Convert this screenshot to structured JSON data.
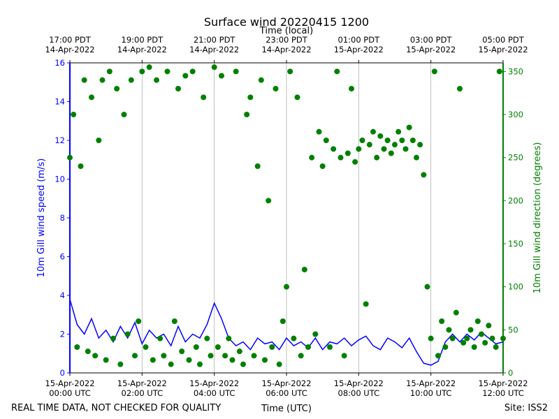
{
  "chart_data": {
    "type": "line_scatter_dual",
    "title": "Surface wind 20220415 1200",
    "x2label": "Time (local)",
    "xlabel": "Time (UTC)",
    "ylabel": "10m Gill wind speed (m/s)",
    "y2label": "10m Gill wind direction (degrees)",
    "footer_left": "REAL TIME DATA, NOT CHECKED FOR QUALITY",
    "footer_right": "Site: ISS2",
    "xlim": [
      0,
      12
    ],
    "xticks": [
      {
        "value": 0,
        "label": [
          "15-Apr-2022",
          "00:00 UTC"
        ]
      },
      {
        "value": 2,
        "label": [
          "15-Apr-2022",
          "02:00 UTC"
        ]
      },
      {
        "value": 4,
        "label": [
          "15-Apr-2022",
          "04:00 UTC"
        ]
      },
      {
        "value": 6,
        "label": [
          "15-Apr-2022",
          "06:00 UTC"
        ]
      },
      {
        "value": 8,
        "label": [
          "15-Apr-2022",
          "08:00 UTC"
        ]
      },
      {
        "value": 10,
        "label": [
          "15-Apr-2022",
          "10:00 UTC"
        ]
      },
      {
        "value": 12,
        "label": [
          "15-Apr-2022",
          "12:00 UTC"
        ]
      }
    ],
    "x2ticks": [
      {
        "value": 0,
        "label": [
          "17:00 PDT",
          "14-Apr-2022"
        ]
      },
      {
        "value": 2,
        "label": [
          "19:00 PDT",
          "14-Apr-2022"
        ]
      },
      {
        "value": 4,
        "label": [
          "21:00 PDT",
          "14-Apr-2022"
        ]
      },
      {
        "value": 6,
        "label": [
          "23:00 PDT",
          "14-Apr-2022"
        ]
      },
      {
        "value": 8,
        "label": [
          "01:00 PDT",
          "15-Apr-2022"
        ]
      },
      {
        "value": 10,
        "label": [
          "03:00 PDT",
          "15-Apr-2022"
        ]
      },
      {
        "value": 12,
        "label": [
          "05:00 PDT",
          "15-Apr-2022"
        ]
      }
    ],
    "ylim": [
      0,
      16
    ],
    "yticks": [
      0,
      2,
      4,
      6,
      8,
      10,
      12,
      14,
      16
    ],
    "y2lim": [
      0,
      360
    ],
    "y2ticks": [
      0,
      50,
      100,
      150,
      200,
      250,
      300,
      350
    ],
    "grid": "x",
    "series": [
      {
        "type": "line",
        "axis": "y",
        "color": "#0000ff",
        "x": [
          0,
          0.2,
          0.4,
          0.6,
          0.8,
          1,
          1.2,
          1.4,
          1.6,
          1.8,
          2,
          2.2,
          2.4,
          2.6,
          2.8,
          3,
          3.2,
          3.4,
          3.6,
          3.8,
          4,
          4.2,
          4.4,
          4.6,
          4.8,
          5,
          5.2,
          5.4,
          5.6,
          5.8,
          6,
          6.2,
          6.4,
          6.6,
          6.8,
          7,
          7.2,
          7.4,
          7.6,
          7.8,
          8,
          8.2,
          8.4,
          8.6,
          8.8,
          9,
          9.2,
          9.4,
          9.6,
          9.8,
          10,
          10.2,
          10.4,
          10.6,
          10.8,
          11,
          11.2,
          11.4,
          11.6,
          11.8,
          12
        ],
        "values": [
          3.8,
          2.5,
          2.0,
          2.8,
          1.8,
          2.2,
          1.6,
          2.4,
          1.8,
          2.6,
          1.5,
          2.2,
          1.8,
          2.0,
          1.4,
          2.4,
          1.6,
          2.0,
          1.8,
          2.5,
          3.6,
          2.8,
          1.8,
          1.4,
          1.6,
          1.2,
          1.8,
          1.5,
          1.6,
          1.2,
          1.8,
          1.4,
          1.6,
          1.3,
          1.8,
          1.2,
          1.6,
          1.5,
          1.8,
          1.4,
          1.7,
          1.9,
          1.4,
          1.2,
          1.8,
          1.6,
          1.3,
          1.8,
          1.1,
          0.5,
          0.4,
          0.6,
          1.6,
          2.0,
          1.6,
          2.0,
          1.7,
          2.1,
          1.8,
          1.5,
          1.6
        ]
      },
      {
        "type": "scatter",
        "axis": "y2",
        "color": "#008000",
        "x": [
          0,
          0.1,
          0.2,
          0.3,
          0.4,
          0.5,
          0.6,
          0.7,
          0.8,
          0.9,
          1,
          1.1,
          1.2,
          1.3,
          1.4,
          1.5,
          1.6,
          1.7,
          1.8,
          1.9,
          2,
          2.1,
          2.2,
          2.3,
          2.4,
          2.5,
          2.6,
          2.7,
          2.8,
          2.9,
          3,
          3.1,
          3.2,
          3.3,
          3.4,
          3.5,
          3.6,
          3.7,
          3.8,
          3.9,
          4,
          4.1,
          4.2,
          4.3,
          4.4,
          4.5,
          4.6,
          4.7,
          4.8,
          4.9,
          5,
          5.1,
          5.2,
          5.3,
          5.4,
          5.5,
          5.6,
          5.7,
          5.8,
          5.9,
          6,
          6.1,
          6.2,
          6.3,
          6.4,
          6.5,
          6.6,
          6.7,
          6.8,
          6.9,
          7,
          7.1,
          7.2,
          7.3,
          7.4,
          7.5,
          7.6,
          7.7,
          7.8,
          7.9,
          8,
          8.1,
          8.2,
          8.3,
          8.4,
          8.5,
          8.6,
          8.7,
          8.8,
          8.9,
          9,
          9.1,
          9.2,
          9.3,
          9.4,
          9.5,
          9.6,
          9.7,
          9.8,
          9.9,
          10,
          10.1,
          10.2,
          10.3,
          10.4,
          10.5,
          10.6,
          10.7,
          10.8,
          10.9,
          11,
          11.1,
          11.2,
          11.3,
          11.4,
          11.5,
          11.6,
          11.7,
          11.8,
          11.9,
          12
        ],
        "values": [
          250,
          300,
          30,
          240,
          340,
          25,
          320,
          20,
          270,
          340,
          15,
          350,
          40,
          330,
          10,
          300,
          45,
          340,
          20,
          60,
          350,
          30,
          355,
          15,
          340,
          40,
          20,
          350,
          10,
          60,
          330,
          25,
          345,
          15,
          350,
          30,
          10,
          320,
          40,
          20,
          355,
          30,
          345,
          20,
          40,
          15,
          350,
          25,
          10,
          300,
          320,
          20,
          240,
          340,
          15,
          200,
          30,
          330,
          10,
          60,
          100,
          350,
          40,
          320,
          20,
          120,
          30,
          250,
          45,
          280,
          240,
          270,
          30,
          260,
          350,
          250,
          20,
          255,
          330,
          245,
          260,
          270,
          80,
          265,
          280,
          250,
          275,
          260,
          270,
          255,
          265,
          280,
          270,
          260,
          285,
          270,
          250,
          265,
          230,
          100,
          40,
          350,
          20,
          60,
          30,
          50,
          40,
          70,
          330,
          35,
          40,
          50,
          30,
          60,
          45,
          35,
          55,
          40,
          30,
          350,
          40
        ]
      }
    ]
  }
}
